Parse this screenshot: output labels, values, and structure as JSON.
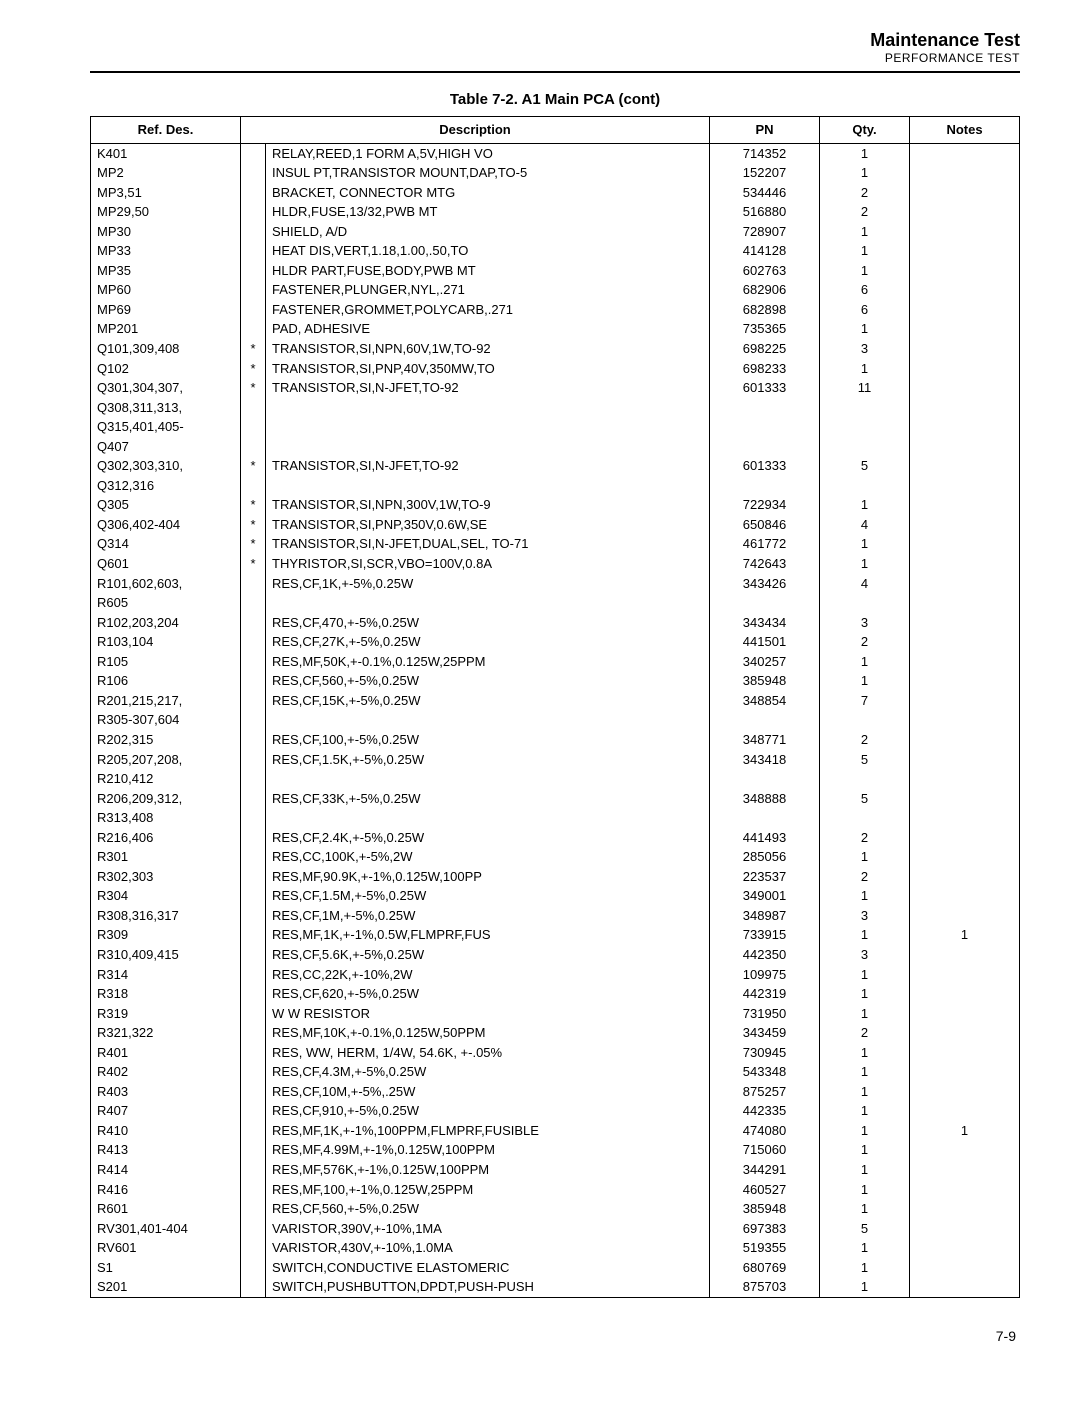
{
  "header": {
    "title": "Maintenance Test",
    "subtitle": "PERFORMANCE TEST"
  },
  "table": {
    "caption": "Table 7-2. A1 Main PCA (cont)",
    "columns": [
      "Ref. Des.",
      "Description",
      "PN",
      "Qty.",
      "Notes"
    ]
  },
  "rows": [
    {
      "ref": "K401",
      "star": "",
      "desc": "RELAY,REED,1 FORM A,5V,HIGH VO",
      "pn": "714352",
      "qty": "1",
      "notes": ""
    },
    {
      "ref": "MP2",
      "star": "",
      "desc": "INSUL PT,TRANSISTOR MOUNT,DAP,TO-5",
      "pn": "152207",
      "qty": "1",
      "notes": ""
    },
    {
      "ref": "MP3,51",
      "star": "",
      "desc": "BRACKET, CONNECTOR MTG",
      "pn": "534446",
      "qty": "2",
      "notes": ""
    },
    {
      "ref": "MP29,50",
      "star": "",
      "desc": "HLDR,FUSE,13/32,PWB MT",
      "pn": "516880",
      "qty": "2",
      "notes": ""
    },
    {
      "ref": "MP30",
      "star": "",
      "desc": "SHIELD, A/D",
      "pn": "728907",
      "qty": "1",
      "notes": ""
    },
    {
      "ref": "MP33",
      "star": "",
      "desc": "HEAT DIS,VERT,1.18,1.00,.50,TO",
      "pn": "414128",
      "qty": "1",
      "notes": ""
    },
    {
      "ref": "MP35",
      "star": "",
      "desc": "HLDR PART,FUSE,BODY,PWB MT",
      "pn": "602763",
      "qty": "1",
      "notes": ""
    },
    {
      "ref": "MP60",
      "star": "",
      "desc": "FASTENER,PLUNGER,NYL,.271",
      "pn": "682906",
      "qty": "6",
      "notes": ""
    },
    {
      "ref": "MP69",
      "star": "",
      "desc": "FASTENER,GROMMET,POLYCARB,.271",
      "pn": "682898",
      "qty": "6",
      "notes": ""
    },
    {
      "ref": "MP201",
      "star": "",
      "desc": "PAD, ADHESIVE",
      "pn": "735365",
      "qty": "1",
      "notes": ""
    },
    {
      "ref": "Q101,309,408",
      "star": "*",
      "desc": "TRANSISTOR,SI,NPN,60V,1W,TO-92",
      "pn": "698225",
      "qty": "3",
      "notes": ""
    },
    {
      "ref": "Q102",
      "star": "*",
      "desc": "TRANSISTOR,SI,PNP,40V,350MW,TO",
      "pn": "698233",
      "qty": "1",
      "notes": ""
    },
    {
      "ref": "Q301,304,307,",
      "star": "*",
      "desc": "TRANSISTOR,SI,N-JFET,TO-92",
      "pn": "601333",
      "qty": "11",
      "notes": ""
    },
    {
      "ref": "Q308,311,313,",
      "star": "",
      "desc": "",
      "pn": "",
      "qty": "",
      "notes": ""
    },
    {
      "ref": "Q315,401,405-",
      "star": "",
      "desc": "",
      "pn": "",
      "qty": "",
      "notes": ""
    },
    {
      "ref": "Q407",
      "star": "",
      "desc": "",
      "pn": "",
      "qty": "",
      "notes": ""
    },
    {
      "ref": "Q302,303,310,",
      "star": "*",
      "desc": "TRANSISTOR,SI,N-JFET,TO-92",
      "pn": "601333",
      "qty": "5",
      "notes": ""
    },
    {
      "ref": "Q312,316",
      "star": "",
      "desc": "",
      "pn": "",
      "qty": "",
      "notes": ""
    },
    {
      "ref": "Q305",
      "star": "*",
      "desc": "TRANSISTOR,SI,NPN,300V,1W,TO-9",
      "pn": "722934",
      "qty": "1",
      "notes": ""
    },
    {
      "ref": "Q306,402-404",
      "star": "*",
      "desc": "TRANSISTOR,SI,PNP,350V,0.6W,SE",
      "pn": "650846",
      "qty": "4",
      "notes": ""
    },
    {
      "ref": "Q314",
      "star": "*",
      "desc": "TRANSISTOR,SI,N-JFET,DUAL,SEL, TO-71",
      "pn": "461772",
      "qty": "1",
      "notes": ""
    },
    {
      "ref": "Q601",
      "star": "*",
      "desc": "THYRISTOR,SI,SCR,VBO=100V,0.8A",
      "pn": "742643",
      "qty": "1",
      "notes": ""
    },
    {
      "ref": "R101,602,603,",
      "star": "",
      "desc": "RES,CF,1K,+-5%,0.25W",
      "pn": "343426",
      "qty": "4",
      "notes": ""
    },
    {
      "ref": "R605",
      "star": "",
      "desc": "",
      "pn": "",
      "qty": "",
      "notes": ""
    },
    {
      "ref": "R102,203,204",
      "star": "",
      "desc": "RES,CF,470,+-5%,0.25W",
      "pn": "343434",
      "qty": "3",
      "notes": ""
    },
    {
      "ref": "R103,104",
      "star": "",
      "desc": "RES,CF,27K,+-5%,0.25W",
      "pn": "441501",
      "qty": "2",
      "notes": ""
    },
    {
      "ref": "R105",
      "star": "",
      "desc": "RES,MF,50K,+-0.1%,0.125W,25PPM",
      "pn": "340257",
      "qty": "1",
      "notes": ""
    },
    {
      "ref": "R106",
      "star": "",
      "desc": "RES,CF,560,+-5%,0.25W",
      "pn": "385948",
      "qty": "1",
      "notes": ""
    },
    {
      "ref": "R201,215,217,",
      "star": "",
      "desc": "RES,CF,15K,+-5%,0.25W",
      "pn": "348854",
      "qty": "7",
      "notes": ""
    },
    {
      "ref": "R305-307,604",
      "star": "",
      "desc": "",
      "pn": "",
      "qty": "",
      "notes": ""
    },
    {
      "ref": "R202,315",
      "star": "",
      "desc": "RES,CF,100,+-5%,0.25W",
      "pn": "348771",
      "qty": "2",
      "notes": ""
    },
    {
      "ref": "R205,207,208,",
      "star": "",
      "desc": "RES,CF,1.5K,+-5%,0.25W",
      "pn": "343418",
      "qty": "5",
      "notes": ""
    },
    {
      "ref": "R210,412",
      "star": "",
      "desc": "",
      "pn": "",
      "qty": "",
      "notes": ""
    },
    {
      "ref": "R206,209,312,",
      "star": "",
      "desc": "RES,CF,33K,+-5%,0.25W",
      "pn": "348888",
      "qty": "5",
      "notes": ""
    },
    {
      "ref": "R313,408",
      "star": "",
      "desc": "",
      "pn": "",
      "qty": "",
      "notes": ""
    },
    {
      "ref": "R216,406",
      "star": "",
      "desc": "RES,CF,2.4K,+-5%,0.25W",
      "pn": "441493",
      "qty": "2",
      "notes": ""
    },
    {
      "ref": "R301",
      "star": "",
      "desc": "RES,CC,100K,+-5%,2W",
      "pn": "285056",
      "qty": "1",
      "notes": ""
    },
    {
      "ref": "R302,303",
      "star": "",
      "desc": "RES,MF,90.9K,+-1%,0.125W,100PP",
      "pn": "223537",
      "qty": "2",
      "notes": ""
    },
    {
      "ref": "R304",
      "star": "",
      "desc": "RES,CF,1.5M,+-5%,0.25W",
      "pn": "349001",
      "qty": "1",
      "notes": ""
    },
    {
      "ref": "R308,316,317",
      "star": "",
      "desc": "RES,CF,1M,+-5%,0.25W",
      "pn": "348987",
      "qty": "3",
      "notes": ""
    },
    {
      "ref": "R309",
      "star": "",
      "desc": "RES,MF,1K,+-1%,0.5W,FLMPRF,FUS",
      "pn": "733915",
      "qty": "1",
      "notes": "1"
    },
    {
      "ref": "R310,409,415",
      "star": "",
      "desc": "RES,CF,5.6K,+-5%,0.25W",
      "pn": "442350",
      "qty": "3",
      "notes": ""
    },
    {
      "ref": "R314",
      "star": "",
      "desc": "RES,CC,22K,+-10%,2W",
      "pn": "109975",
      "qty": "1",
      "notes": ""
    },
    {
      "ref": "R318",
      "star": "",
      "desc": "RES,CF,620,+-5%,0.25W",
      "pn": "442319",
      "qty": "1",
      "notes": ""
    },
    {
      "ref": "R319",
      "star": "",
      "desc": "W W RESISTOR",
      "pn": "731950",
      "qty": "1",
      "notes": ""
    },
    {
      "ref": "R321,322",
      "star": "",
      "desc": "RES,MF,10K,+-0.1%,0.125W,50PPM",
      "pn": "343459",
      "qty": "2",
      "notes": ""
    },
    {
      "ref": "R401",
      "star": "",
      "desc": "RES, WW, HERM, 1/4W, 54.6K, +-.05%",
      "pn": "730945",
      "qty": "1",
      "notes": ""
    },
    {
      "ref": "R402",
      "star": "",
      "desc": "RES,CF,4.3M,+-5%,0.25W",
      "pn": "543348",
      "qty": "1",
      "notes": ""
    },
    {
      "ref": "R403",
      "star": "",
      "desc": "RES,CF,10M,+-5%,.25W",
      "pn": "875257",
      "qty": "1",
      "notes": ""
    },
    {
      "ref": "R407",
      "star": "",
      "desc": "RES,CF,910,+-5%,0.25W",
      "pn": "442335",
      "qty": "1",
      "notes": ""
    },
    {
      "ref": "R410",
      "star": "",
      "desc": "RES,MF,1K,+-1%,100PPM,FLMPRF,FUSIBLE",
      "pn": "474080",
      "qty": "1",
      "notes": "1"
    },
    {
      "ref": "R413",
      "star": "",
      "desc": "RES,MF,4.99M,+-1%,0.125W,100PPM",
      "pn": "715060",
      "qty": "1",
      "notes": ""
    },
    {
      "ref": "R414",
      "star": "",
      "desc": "RES,MF,576K,+-1%,0.125W,100PPM",
      "pn": "344291",
      "qty": "1",
      "notes": ""
    },
    {
      "ref": "R416",
      "star": "",
      "desc": "RES,MF,100,+-1%,0.125W,25PPM",
      "pn": "460527",
      "qty": "1",
      "notes": ""
    },
    {
      "ref": "R601",
      "star": "",
      "desc": "RES,CF,560,+-5%,0.25W",
      "pn": "385948",
      "qty": "1",
      "notes": ""
    },
    {
      "ref": "RV301,401-404",
      "star": "",
      "desc": "VARISTOR,390V,+-10%,1MA",
      "pn": "697383",
      "qty": "5",
      "notes": ""
    },
    {
      "ref": "RV601",
      "star": "",
      "desc": "VARISTOR,430V,+-10%,1.0MA",
      "pn": "519355",
      "qty": "1",
      "notes": ""
    },
    {
      "ref": "S1",
      "star": "",
      "desc": "SWITCH,CONDUCTIVE ELASTOMERIC",
      "pn": "680769",
      "qty": "1",
      "notes": ""
    },
    {
      "ref": "S201",
      "star": "",
      "desc": "SWITCH,PUSHBUTTON,DPDT,PUSH-PUSH",
      "pn": "875703",
      "qty": "1",
      "notes": ""
    }
  ],
  "footer": {
    "page": "7-9"
  }
}
